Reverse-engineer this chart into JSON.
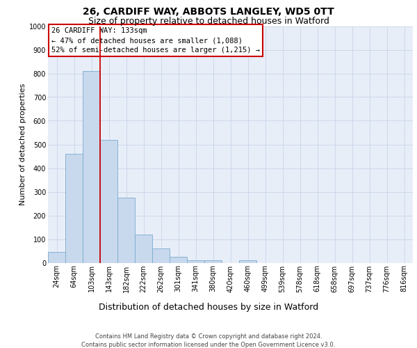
{
  "title_line1": "26, CARDIFF WAY, ABBOTS LANGLEY, WD5 0TT",
  "title_line2": "Size of property relative to detached houses in Watford",
  "xlabel": "Distribution of detached houses by size in Watford",
  "ylabel": "Number of detached properties",
  "footnote1": "Contains HM Land Registry data © Crown copyright and database right 2024.",
  "footnote2": "Contains public sector information licensed under the Open Government Licence v3.0.",
  "bins": [
    "24sqm",
    "64sqm",
    "103sqm",
    "143sqm",
    "182sqm",
    "222sqm",
    "262sqm",
    "301sqm",
    "341sqm",
    "380sqm",
    "420sqm",
    "460sqm",
    "499sqm",
    "539sqm",
    "578sqm",
    "618sqm",
    "658sqm",
    "697sqm",
    "737sqm",
    "776sqm",
    "816sqm"
  ],
  "values": [
    47,
    460,
    810,
    520,
    275,
    120,
    60,
    25,
    10,
    10,
    0,
    10,
    0,
    0,
    0,
    0,
    0,
    0,
    0,
    0,
    0
  ],
  "bar_color": "#c8d9ed",
  "bar_edge_color": "#7aaacf",
  "vline_index": 2.5,
  "vline_color": "#cc0000",
  "annotation_text": "26 CARDIFF WAY: 133sqm\n← 47% of detached houses are smaller (1,088)\n52% of semi-detached houses are larger (1,215) →",
  "annotation_box_facecolor": "#ffffff",
  "annotation_box_edgecolor": "#cc0000",
  "ylim": [
    0,
    1000
  ],
  "yticks": [
    0,
    100,
    200,
    300,
    400,
    500,
    600,
    700,
    800,
    900,
    1000
  ],
  "grid_color": "#c8d4e8",
  "plot_bg_color": "#e8eef8",
  "title_fontsize": 10,
  "subtitle_fontsize": 9,
  "ylabel_fontsize": 8,
  "xlabel_fontsize": 9,
  "tick_fontsize": 7,
  "annotation_fontsize": 7.5,
  "footnote_fontsize": 6
}
